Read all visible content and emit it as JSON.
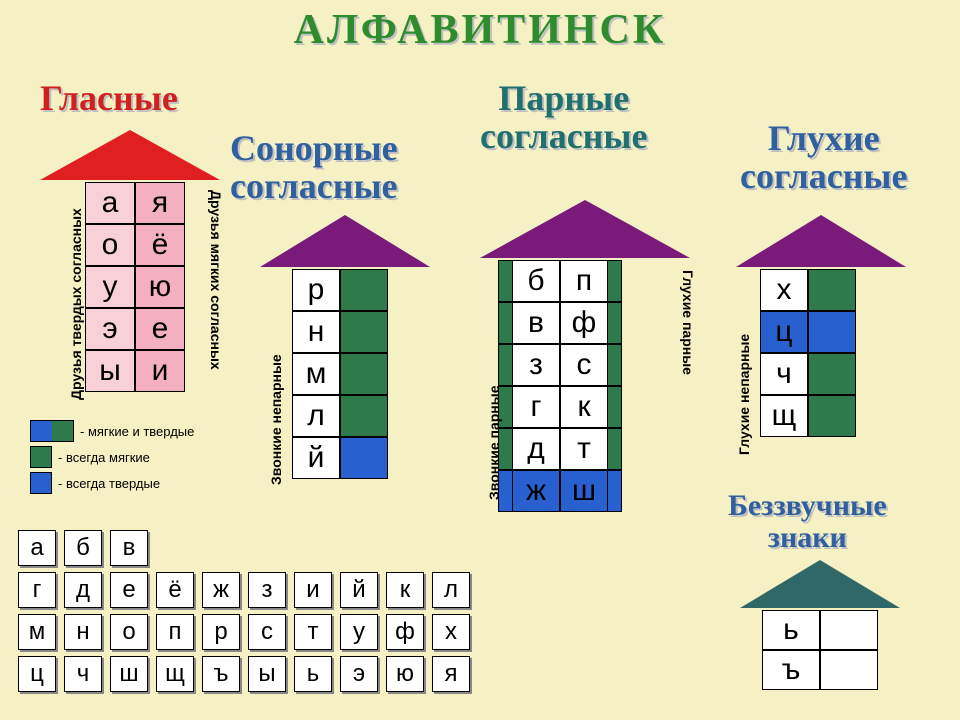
{
  "title": "АЛФАВИТИНСК",
  "sections": {
    "vowels": {
      "title": "Гласные",
      "color": "#d02020"
    },
    "sonor": {
      "title": "Сонорные\nсогласные",
      "color": "#3060a0"
    },
    "pair": {
      "title": "Парные\nсогласные",
      "color": "#207070"
    },
    "deaf": {
      "title": "Глухие\nсогласные",
      "color": "#3060a0"
    },
    "silent": {
      "title": "Беззвучные\nзнаки",
      "color": "#3060a0"
    }
  },
  "colors": {
    "red": "#e02020",
    "pink": "#f4b0c0",
    "lightpink": "#f8d0d8",
    "purple": "#7a1a7a",
    "green": "#2e7a4a",
    "blue": "#2860d0",
    "white": "#ffffff",
    "teal": "#306868"
  },
  "vowels": {
    "left_label": "Друзья твердых согласных",
    "right_label": "Друзья мягких согласных",
    "rows": [
      [
        "а",
        "я"
      ],
      [
        "о",
        "ё"
      ],
      [
        "у",
        "ю"
      ],
      [
        "э",
        "е"
      ],
      [
        "ы",
        "и"
      ]
    ]
  },
  "sonor": {
    "left_label": "Звонкие непарные",
    "rows": [
      {
        "l": "р",
        "c": "green"
      },
      {
        "l": "н",
        "c": "green"
      },
      {
        "l": "м",
        "c": "green"
      },
      {
        "l": "л",
        "c": "green"
      },
      {
        "l": "й",
        "c": "blue"
      }
    ]
  },
  "pair": {
    "left_label": "Звонкие парные",
    "right_label": "Глухие парные",
    "rows": [
      {
        "l": "б",
        "r": "п",
        "cl": "green",
        "cr": "green"
      },
      {
        "l": "в",
        "r": "ф",
        "cl": "green",
        "cr": "green"
      },
      {
        "l": "з",
        "r": "с",
        "cl": "green",
        "cr": "green"
      },
      {
        "l": "г",
        "r": "к",
        "cl": "green",
        "cr": "green"
      },
      {
        "l": "д",
        "r": "т",
        "cl": "green",
        "cr": "green"
      },
      {
        "l": "ж",
        "r": "ш",
        "cl": "blue",
        "cr": "blue"
      }
    ]
  },
  "deaf": {
    "left_label": "Глухие непарные",
    "rows": [
      {
        "l": "х",
        "c": "green"
      },
      {
        "l": "ц",
        "c": "blue"
      },
      {
        "l": "ч",
        "c": "green"
      },
      {
        "l": "щ",
        "c": "green"
      }
    ]
  },
  "silent": {
    "rows": [
      "ь",
      "ъ"
    ]
  },
  "legend": [
    {
      "type": "half",
      "c1": "#2860d0",
      "c2": "#2e7a4a",
      "text": "- мягкие и твердые"
    },
    {
      "type": "box",
      "c": "#2e7a4a",
      "text": "- всегда мягкие"
    },
    {
      "type": "box",
      "c": "#2860d0",
      "text": "- всегда твердые"
    }
  ],
  "alphabet": [
    [
      "а",
      "б",
      "в"
    ],
    [
      "г",
      "д",
      "е",
      "ё",
      "ж",
      "з",
      "и",
      "й",
      "к",
      "л"
    ],
    [
      "м",
      "н",
      "о",
      "п",
      "р",
      "с",
      "т",
      "у",
      "ф",
      "х"
    ],
    [
      "ц",
      "ч",
      "ш",
      "щ",
      "ъ",
      "ы",
      "ь",
      "э",
      "ю",
      "я"
    ]
  ]
}
